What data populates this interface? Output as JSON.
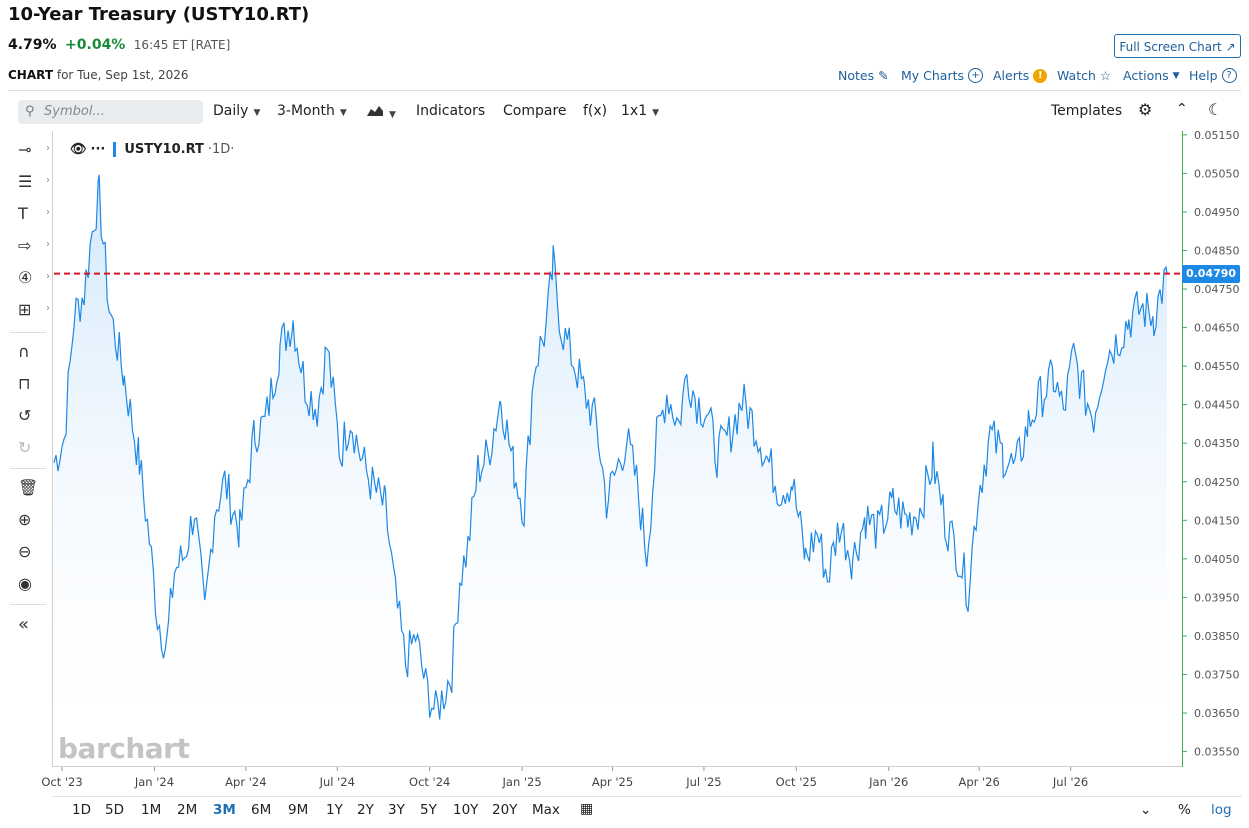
{
  "header": {
    "title": "10-Year Treasury (USTY10.RT)",
    "price": "4.79%",
    "change": "+0.04%",
    "time": "16:45 ET [RATE]",
    "chart_label": "CHART",
    "chart_date": "for Tue, Sep 1st, 2026",
    "full_screen": "Full Screen Chart ↗"
  },
  "links": {
    "notes": "Notes",
    "my_charts": "My Charts",
    "alerts": "Alerts",
    "watch": "Watch",
    "actions": "Actions",
    "help": "Help"
  },
  "toolbar": {
    "symbol_placeholder": "Symbol...",
    "interval": "Daily",
    "period": "3-Month",
    "indicators": "Indicators",
    "compare": "Compare",
    "fx": "f(x)",
    "layout": "1x1",
    "templates": "Templates"
  },
  "legend": {
    "symbol": "USTY10.RT",
    "interval": "·1D·"
  },
  "watermark": "barchart",
  "last_value_label": "0.04790",
  "ranges": [
    "1D",
    "5D",
    "1M",
    "2M",
    "3M",
    "6M",
    "9M",
    "1Y",
    "2Y",
    "3Y",
    "5Y",
    "10Y",
    "20Y",
    "Max"
  ],
  "active_range": "3M",
  "bottom_right": {
    "percent": "%",
    "log": "log"
  },
  "colors": {
    "line": "#1e88e5",
    "fill": "#cfe6fb",
    "ref_line": "#d9152b",
    "axis": "#3cb043",
    "accent": "#1f6fb2"
  },
  "chart_data": {
    "type": "area",
    "title": "10-Year Treasury (USTY10.RT)",
    "ylim": [
      0.0351,
      0.0516
    ],
    "y_ticks": [
      0.0515,
      0.0505,
      0.0495,
      0.0485,
      0.0475,
      0.0465,
      0.0455,
      0.0445,
      0.0435,
      0.0425,
      0.0415,
      0.0405,
      0.0395,
      0.0385,
      0.0375,
      0.0365,
      0.0355
    ],
    "y_tick_labels": [
      "0.05150",
      "0.05050",
      "0.04950",
      "0.04850",
      "0.04750",
      "0.04650",
      "0.04550",
      "0.04450",
      "0.04350",
      "0.04250",
      "0.04150",
      "0.04050",
      "0.03950",
      "0.03850",
      "0.03750",
      "0.03650",
      "0.03550"
    ],
    "x_ticks": [
      {
        "label": "Oct '23",
        "t": 8
      },
      {
        "label": "Jan '24",
        "t": 100
      },
      {
        "label": "Apr '24",
        "t": 191
      },
      {
        "label": "Jul '24",
        "t": 282
      },
      {
        "label": "Oct '24",
        "t": 374
      },
      {
        "label": "Jan '25",
        "t": 466
      },
      {
        "label": "Apr '25",
        "t": 556
      },
      {
        "label": "Jul '25",
        "t": 647
      },
      {
        "label": "Oct '25",
        "t": 739
      },
      {
        "label": "Jan '26",
        "t": 831
      },
      {
        "label": "Apr '26",
        "t": 921
      },
      {
        "label": "Jul '26",
        "t": 1012
      }
    ],
    "t_range": [
      0,
      1108
    ],
    "reference_line": 0.0479,
    "last_value": 0.0479,
    "series": [
      {
        "points": [
          [
            0,
            0.043
          ],
          [
            10,
            0.0436
          ],
          [
            20,
            0.0468
          ],
          [
            30,
            0.0474
          ],
          [
            40,
            0.0494
          ],
          [
            45,
            0.0499
          ],
          [
            55,
            0.047
          ],
          [
            70,
            0.0452
          ],
          [
            85,
            0.043
          ],
          [
            95,
            0.041
          ],
          [
            103,
            0.039
          ],
          [
            112,
            0.0382
          ],
          [
            120,
            0.0402
          ],
          [
            130,
            0.0406
          ],
          [
            140,
            0.0418
          ],
          [
            150,
            0.039
          ],
          [
            160,
            0.0418
          ],
          [
            170,
            0.0425
          ],
          [
            185,
            0.0412
          ],
          [
            200,
            0.0438
          ],
          [
            210,
            0.044
          ],
          [
            225,
            0.046
          ],
          [
            238,
            0.0467
          ],
          [
            250,
            0.045
          ],
          [
            262,
            0.0444
          ],
          [
            272,
            0.046
          ],
          [
            285,
            0.0432
          ],
          [
            295,
            0.0442
          ],
          [
            305,
            0.0432
          ],
          [
            315,
            0.0425
          ],
          [
            330,
            0.0418
          ],
          [
            340,
            0.0395
          ],
          [
            350,
            0.0378
          ],
          [
            360,
            0.0385
          ],
          [
            370,
            0.0372
          ],
          [
            380,
            0.0365
          ],
          [
            388,
            0.037
          ],
          [
            396,
            0.0376
          ],
          [
            404,
            0.04
          ],
          [
            412,
            0.0408
          ],
          [
            422,
            0.0428
          ],
          [
            432,
            0.0432
          ],
          [
            445,
            0.0447
          ],
          [
            458,
            0.0428
          ],
          [
            468,
            0.0418
          ],
          [
            478,
            0.0455
          ],
          [
            490,
            0.0465
          ],
          [
            497,
            0.0481
          ],
          [
            505,
            0.0465
          ],
          [
            515,
            0.0458
          ],
          [
            528,
            0.0448
          ],
          [
            540,
            0.044
          ],
          [
            550,
            0.042
          ],
          [
            560,
            0.0428
          ],
          [
            570,
            0.0436
          ],
          [
            580,
            0.0425
          ],
          [
            590,
            0.0406
          ],
          [
            600,
            0.0436
          ],
          [
            610,
            0.0448
          ],
          [
            622,
            0.044
          ],
          [
            630,
            0.0453
          ],
          [
            640,
            0.0446
          ],
          [
            650,
            0.0443
          ],
          [
            660,
            0.0432
          ],
          [
            672,
            0.0437
          ],
          [
            685,
            0.0446
          ],
          [
            697,
            0.044
          ],
          [
            710,
            0.0431
          ],
          [
            722,
            0.0423
          ],
          [
            735,
            0.0425
          ],
          [
            748,
            0.0405
          ],
          [
            760,
            0.0412
          ],
          [
            770,
            0.04
          ],
          [
            782,
            0.0414
          ],
          [
            795,
            0.0405
          ],
          [
            808,
            0.0416
          ],
          [
            820,
            0.0412
          ],
          [
            835,
            0.0419
          ],
          [
            850,
            0.0415
          ],
          [
            862,
            0.0418
          ],
          [
            875,
            0.043
          ],
          [
            888,
            0.0414
          ],
          [
            898,
            0.0408
          ],
          [
            910,
            0.0397
          ],
          [
            920,
            0.0422
          ],
          [
            932,
            0.0437
          ],
          [
            945,
            0.0432
          ],
          [
            957,
            0.0428
          ],
          [
            970,
            0.044
          ],
          [
            982,
            0.0447
          ],
          [
            995,
            0.0452
          ],
          [
            1005,
            0.0443
          ],
          [
            1015,
            0.0458
          ],
          [
            1025,
            0.0448
          ],
          [
            1035,
            0.0442
          ],
          [
            1047,
            0.0458
          ],
          [
            1057,
            0.0461
          ],
          [
            1070,
            0.0467
          ],
          [
            1082,
            0.047
          ],
          [
            1095,
            0.0468
          ],
          [
            1108,
            0.0479
          ]
        ]
      }
    ]
  }
}
